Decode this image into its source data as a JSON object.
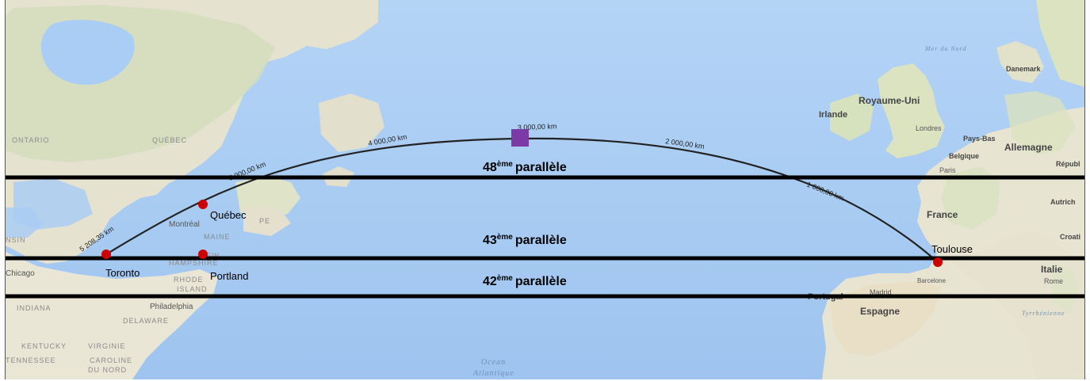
{
  "parallels": [
    {
      "num": "48",
      "sup": "ème",
      "word": "parallèle"
    },
    {
      "num": "43",
      "sup": "ème",
      "word": "parallèle"
    },
    {
      "num": "42",
      "sup": "ème",
      "word": "parallèle"
    }
  ],
  "cities": {
    "toronto": "Toronto",
    "quebec": "Québec",
    "portland": "Portland",
    "toulouse": "Toulouse"
  },
  "distance_labels": {
    "d1": "5 208,35 km",
    "d2": "5 000,00 km",
    "d3": "4 000,00 km",
    "d4": "3 000,00 km",
    "d5": "2 000,00 km",
    "d6": "1 000,00 km"
  },
  "basemap_labels": {
    "ontario": "ONTARIO",
    "quebec_prov": "QUÉBEC",
    "montreal": "Montréal",
    "maine": "MAINE",
    "new": "NEW",
    "hampshire": "HAMPSHIRE",
    "rhode": "RHODE",
    "island": "ISLAND",
    "pe": "PE",
    "philadelphia": "Philadelphia",
    "delaware": "DELAWARE",
    "indiana": "INDIANA",
    "kentucky": "KENTUCKY",
    "virginie": "VIRGINIE",
    "tennessee": "TENNESSEE",
    "caroline": "CAROLINE",
    "du_nord": "DU NORD",
    "chicago": "Chicago",
    "nsin": "NSIN",
    "ocean": "Ocean",
    "atlantique": "Atlantique",
    "mer_du_nord": "Mer du Nord",
    "royaume_uni": "Royaume-Uni",
    "danemark": "Danemark",
    "irlande": "Irlande",
    "londres": "Londres",
    "pays_bas": "Pays-Bas",
    "belgique": "Belgique",
    "allemagne": "Allemagne",
    "paris": "Paris",
    "republ": "Républ",
    "france": "France",
    "autrich": "Autrich",
    "croat": "Croati",
    "italie": "Italie",
    "rome": "Rome",
    "barcelone": "Barcelone",
    "madrid": "Madrid",
    "espagne": "Espagne",
    "portugal": "Portugal",
    "tyrrhenienne": "Tyrrhénienne"
  },
  "colors": {
    "ocean": "#a9cdf5",
    "land": "#e8e4d4",
    "forest": "#cfdcb4",
    "route": "#222222",
    "parallel": "#000000",
    "city_marker": "#cc0000",
    "midpoint_marker": "#7b3aa6"
  }
}
